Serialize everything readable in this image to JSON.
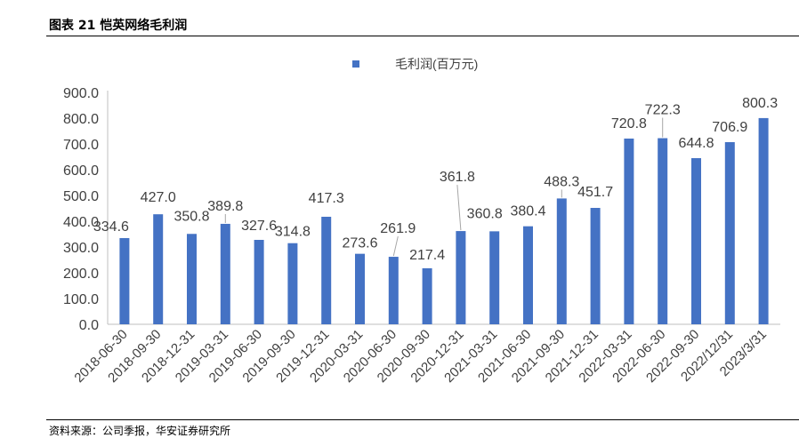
{
  "figure_title": "图表 21 恺英网络毛利润",
  "source": "资料来源：公司季报，华安证券研究所",
  "colors": {
    "bar": "#4472C4",
    "axis": "#bfbfbf",
    "leader": "#a6a6a6"
  },
  "chart_data": {
    "type": "bar",
    "title": "",
    "xlabel": "",
    "ylabel": "",
    "ylim": [
      0,
      900
    ],
    "yticks": [
      "0.0",
      "100.0",
      "200.0",
      "300.0",
      "400.0",
      "500.0",
      "600.0",
      "700.0",
      "800.0",
      "900.0"
    ],
    "legend": {
      "position": "top",
      "entries": [
        "毛利润(百万元)"
      ]
    },
    "grid": false,
    "categories": [
      "2018-06-30",
      "2018-09-30",
      "2018-12-31",
      "2019-03-31",
      "2019-06-30",
      "2019-09-30",
      "2019-12-31",
      "2020-03-31",
      "2020-06-30",
      "2020-09-30",
      "2020-12-31",
      "2021-03-31",
      "2021-06-30",
      "2021-09-30",
      "2021-12-31",
      "2022-03-31",
      "2022-06-30",
      "2022-09-30",
      "2022/12/31",
      "2023/3/31"
    ],
    "series": [
      {
        "name": "毛利润(百万元)",
        "values": [
          334.6,
          427.0,
          350.8,
          389.8,
          327.6,
          314.8,
          417.3,
          273.6,
          261.9,
          217.4,
          361.8,
          360.8,
          380.4,
          488.3,
          451.7,
          720.8,
          722.3,
          644.8,
          706.9,
          800.3
        ],
        "labels": [
          "334.6",
          "427.0",
          "350.8",
          "389.8",
          "327.6",
          "314.8",
          "417.3",
          "273.6",
          "261.9",
          "217.4",
          "361.8",
          "360.8",
          "380.4",
          "488.3",
          "451.7",
          "720.8",
          "722.3",
          "644.8",
          "706.9",
          "800.3"
        ]
      }
    ]
  }
}
